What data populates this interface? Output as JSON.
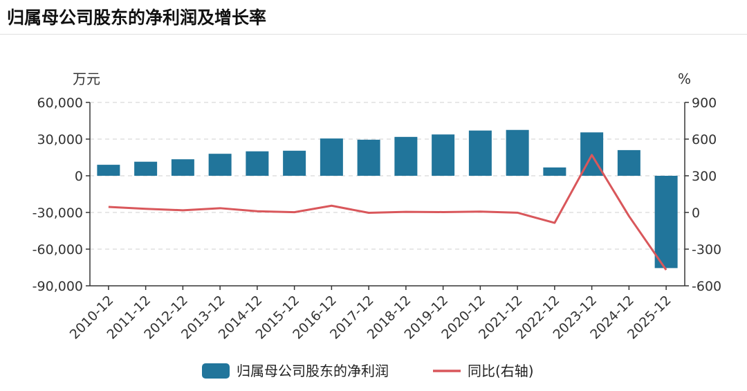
{
  "chart_data": {
    "type": "bar",
    "title": "归属母公司股东的净利润及增长率",
    "left_unit": "万元",
    "right_unit": "%",
    "categories": [
      "2010-12",
      "2011-12",
      "2012-12",
      "2013-12",
      "2014-12",
      "2015-12",
      "2016-12",
      "2017-12",
      "2018-12",
      "2019-12",
      "2020-12",
      "2021-12",
      "2022-12",
      "2023-12",
      "2024-12",
      "2025-12"
    ],
    "y_ticks": [
      "60,000",
      "30,000",
      "0",
      "-30,000",
      "-60,000",
      "-90,000"
    ],
    "y2_ticks": [
      "900",
      "600",
      "300",
      "0",
      "-300",
      "-600"
    ],
    "ylim": [
      -90000,
      60000
    ],
    "y2lim": [
      -600,
      900
    ],
    "grid": true,
    "legend_position": "bottom",
    "series": [
      {
        "name": "归属母公司股东的净利润",
        "type": "bar",
        "axis": "left",
        "color": "#21759b",
        "values": [
          9000,
          11500,
          13500,
          18000,
          20000,
          20500,
          30500,
          29500,
          31800,
          33800,
          37000,
          37500,
          6800,
          35500,
          21000,
          -75500
        ]
      },
      {
        "name": "同比(右轴)",
        "type": "line",
        "axis": "right",
        "color": "#d9575b",
        "values": [
          45,
          30,
          18,
          35,
          10,
          2,
          55,
          -3,
          5,
          3,
          7,
          -2,
          -85,
          470,
          -30,
          -470
        ]
      }
    ]
  }
}
